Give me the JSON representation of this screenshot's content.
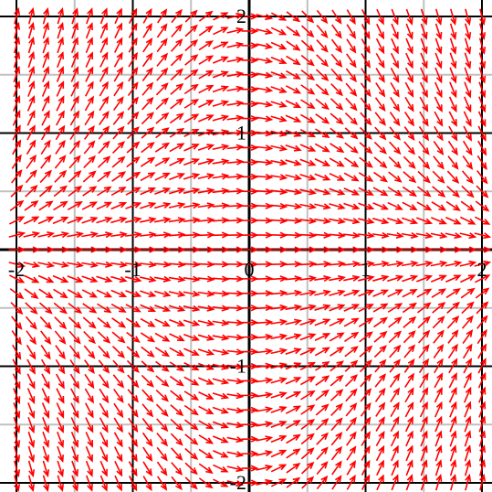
{
  "chart_data": {
    "type": "scatter",
    "plot_kind": "direction-field",
    "title": "",
    "xlabel": "",
    "ylabel": "",
    "xlim": [
      -2.05,
      2.05
    ],
    "ylim": [
      -2.05,
      2.05
    ],
    "x_ticks": [
      -2,
      -1,
      0,
      1,
      2
    ],
    "y_ticks": [
      -2,
      -1,
      1,
      2
    ],
    "x_tick_labels": [
      "-2",
      "-1",
      "0",
      "1",
      "2"
    ],
    "y_tick_labels": [
      "-2",
      "-1",
      "1",
      "2"
    ],
    "grid": true,
    "major_grid_step": 1,
    "minor_grid_step": 0.5,
    "arrow_grid_step": 0.125,
    "slope_field": "dy/dx = -x*y",
    "colors": {
      "arrow": "#ff0000",
      "major_grid": "#000000",
      "minor_grid": "#c0c0c0",
      "background": "#ffffff"
    }
  }
}
